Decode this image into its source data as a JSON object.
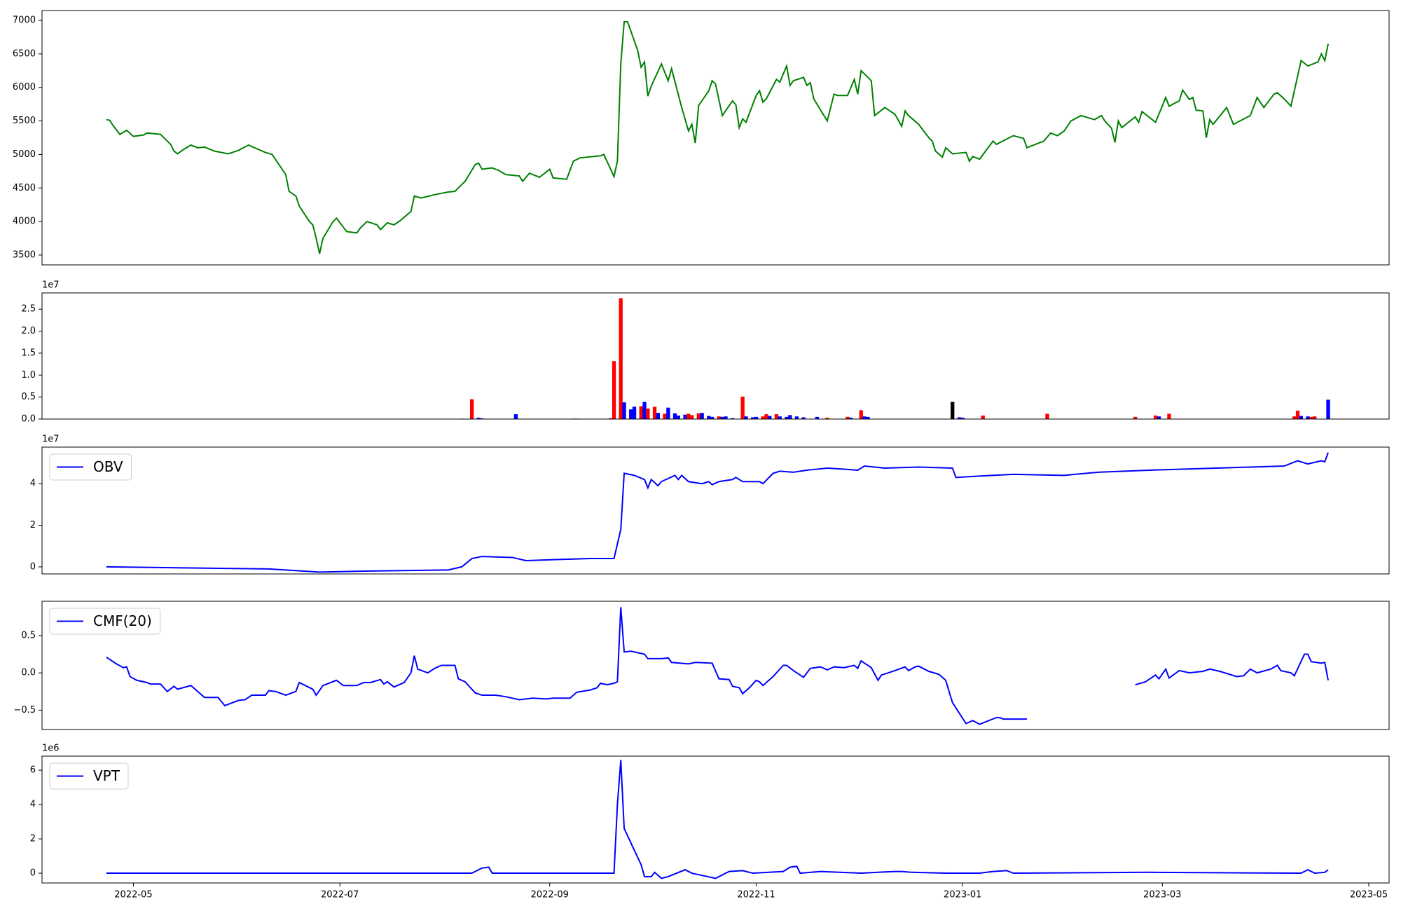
{
  "chart_data": [
    {
      "type": "line",
      "color": "#008000",
      "x": [
        -8,
        -7,
        -6,
        -4,
        -2,
        0,
        3,
        4,
        8,
        11,
        12,
        13,
        15,
        17,
        19,
        21,
        24,
        28,
        31,
        34,
        39,
        41,
        45,
        46,
        48,
        49,
        52,
        53,
        54,
        55,
        56,
        59,
        60,
        63,
        66,
        67,
        69,
        72,
        73,
        75,
        77,
        79,
        82,
        83,
        85,
        89,
        93,
        95,
        97,
        98,
        101,
        102,
        103,
        106,
        108,
        110,
        114,
        115,
        117,
        120,
        123,
        124,
        128,
        130,
        132,
        138,
        139,
        142,
        143,
        144,
        145,
        146,
        149,
        150,
        151,
        152,
        153,
        156,
        158,
        159,
        162,
        164,
        165,
        166,
        167,
        170,
        171,
        172,
        174,
        177,
        178,
        179,
        180,
        181,
        184,
        185,
        186,
        187,
        190,
        191,
        193,
        194,
        195,
        198,
        199,
        200,
        201,
        205,
        207,
        208,
        211,
        213,
        214,
        215,
        218,
        219,
        222,
        225,
        227,
        228,
        229,
        232,
        235,
        236,
        237,
        239,
        240,
        242,
        246,
        247,
        248,
        250,
        254,
        255,
        258,
        260,
        263,
        264,
        267,
        269,
        271,
        273,
        275,
        277,
        280,
        284,
        286,
        287,
        289,
        290,
        291,
        292,
        296,
        297,
        298,
        302,
        305,
        306,
        309,
        310,
        312,
        313,
        314,
        316,
        317,
        318,
        319,
        323,
        325,
        330,
        332,
        334,
        337,
        338,
        340,
        342,
        345,
        347,
        350,
        351,
        352,
        353
      ],
      "values": [
        5520,
        5510,
        5430,
        5300,
        5360,
        5270,
        5290,
        5320,
        5300,
        5150,
        5050,
        5010,
        5080,
        5140,
        5100,
        5110,
        5050,
        5010,
        5060,
        5140,
        5030,
        5000,
        4700,
        4450,
        4380,
        4230,
        4000,
        3950,
        3750,
        3520,
        3750,
        4000,
        4050,
        3850,
        3830,
        3900,
        4000,
        3950,
        3880,
        3980,
        3950,
        4020,
        4150,
        4380,
        4350,
        4400,
        4440,
        4450,
        4550,
        4600,
        4850,
        4870,
        4780,
        4800,
        4760,
        4700,
        4680,
        4600,
        4720,
        4660,
        4780,
        4650,
        4630,
        4900,
        4950,
        4980,
        5000,
        4670,
        4900,
        6350,
        6980,
        6980,
        6550,
        6300,
        6380,
        5870,
        6020,
        6350,
        6100,
        6280,
        5700,
        5350,
        5450,
        5170,
        5730,
        5950,
        6100,
        6050,
        5580,
        5800,
        5740,
        5400,
        5530,
        5480,
        5880,
        5950,
        5780,
        5830,
        6120,
        6080,
        6320,
        6030,
        6100,
        6150,
        6030,
        6070,
        5830,
        5500,
        5900,
        5880,
        5880,
        6120,
        5900,
        6250,
        6100,
        5580,
        5700,
        5600,
        5420,
        5650,
        5580,
        5450,
        5250,
        5200,
        5050,
        4960,
        5100,
        5010,
        5030,
        4900,
        4970,
        4930,
        5200,
        5150,
        5230,
        5280,
        5240,
        5100,
        5160,
        5200,
        5320,
        5280,
        5350,
        5500,
        5580,
        5520,
        5580,
        5500,
        5390,
        5180,
        5500,
        5400,
        5560,
        5480,
        5640,
        5480,
        5850,
        5720,
        5800,
        5960,
        5820,
        5850,
        5660,
        5650,
        5250,
        5520,
        5450,
        5700,
        5450,
        5580,
        5850,
        5700,
        5900,
        5920,
        5830,
        5720,
        6400,
        6320,
        6380,
        6500,
        6400,
        6650
      ],
      "xlim": [
        -27,
        371
      ],
      "ylim": [
        3353,
        7147
      ],
      "yticks": [
        3500,
        4000,
        4500,
        5000,
        5500,
        6000,
        6500,
        7000
      ]
    },
    {
      "type": "bar",
      "offset_label": "1e7",
      "x": [
        -1,
        97,
        100,
        102,
        103,
        113,
        130,
        131,
        141,
        142,
        144,
        145,
        147,
        148,
        150,
        151,
        152,
        154,
        155,
        157,
        158,
        160,
        161,
        163,
        164,
        165,
        167,
        168,
        170,
        171,
        173,
        174,
        175,
        177,
        180,
        181,
        183,
        184,
        186,
        187,
        188,
        190,
        191,
        193,
        194,
        196,
        198,
        202,
        205,
        211,
        212,
        215,
        216,
        217,
        242,
        244,
        245,
        251,
        270,
        296,
        302,
        303,
        306,
        343,
        344,
        345,
        347,
        348,
        349,
        353
      ],
      "values": [
        50000,
        100000,
        4500000,
        300000,
        150000,
        1100000,
        100000,
        100000,
        200000,
        13200000,
        27500000,
        3800000,
        2200000,
        2800000,
        2900000,
        3900000,
        2400000,
        2800000,
        1400000,
        1200000,
        2600000,
        1300000,
        800000,
        1000000,
        1200000,
        900000,
        1300000,
        1400000,
        700000,
        500000,
        600000,
        500000,
        600000,
        200000,
        5100000,
        600000,
        400000,
        500000,
        600000,
        1100000,
        700000,
        1100000,
        600000,
        500000,
        900000,
        600000,
        400000,
        500000,
        300000,
        500000,
        300000,
        2000000,
        600000,
        500000,
        3900000,
        400000,
        300000,
        800000,
        1200000,
        500000,
        800000,
        600000,
        1200000,
        600000,
        1900000,
        700000,
        600000,
        500000,
        600000,
        4400000
      ],
      "colors": [
        "#ff0000",
        "#ff0000",
        "#ff0000",
        "#0000ff",
        "#0000ff",
        "#0000ff",
        "#ff0000",
        "#ff0000",
        "#ff0000",
        "#ff0000",
        "#ff0000",
        "#0000ff",
        "#0000ff",
        "#0000ff",
        "#ff0000",
        "#0000ff",
        "#ff0000",
        "#ff0000",
        "#0000ff",
        "#ff0000",
        "#0000ff",
        "#0000ff",
        "#0000ff",
        "#0000ff",
        "#ff0000",
        "#ff0000",
        "#ff0000",
        "#0000ff",
        "#0000ff",
        "#0000ff",
        "#ff0000",
        "#0000ff",
        "#0000ff",
        "#0000ff",
        "#ff0000",
        "#0000ff",
        "#0000ff",
        "#0000ff",
        "#ff0000",
        "#ff0000",
        "#0000ff",
        "#ff0000",
        "#0000ff",
        "#0000ff",
        "#0000ff",
        "#0000ff",
        "#0000ff",
        "#0000ff",
        "#ff0000",
        "#ff0000",
        "#0000ff",
        "#ff0000",
        "#0000ff",
        "#0000ff",
        "#000000",
        "#0000ff",
        "#0000ff",
        "#ff0000",
        "#ff0000",
        "#ff0000",
        "#ff0000",
        "#0000ff",
        "#ff0000",
        "#ff0000",
        "#ff0000",
        "#0000ff",
        "#0000ff",
        "#ff0000",
        "#ff0000",
        "#0000ff"
      ],
      "xlim": [
        -27,
        371
      ],
      "ylim": [
        0,
        28700000
      ],
      "yticks": [
        {
          "value": 0,
          "label": "0.0"
        },
        {
          "value": 5000000,
          "label": "0.5"
        },
        {
          "value": 10000000,
          "label": "1.0"
        },
        {
          "value": 15000000,
          "label": "1.5"
        },
        {
          "value": 20000000,
          "label": "2.0"
        },
        {
          "value": 25000000,
          "label": "2.5"
        }
      ]
    },
    {
      "type": "line",
      "offset_label": "1e7",
      "legend": "upper left",
      "x": [
        -8,
        40,
        55,
        70,
        93,
        97,
        100,
        103,
        112,
        116,
        125,
        135,
        142,
        144,
        145,
        148,
        151,
        152,
        153,
        155,
        156,
        160,
        161,
        162,
        164,
        168,
        170,
        171,
        173,
        177,
        178,
        180,
        185,
        186,
        189,
        191,
        195,
        199,
        205,
        210,
        214,
        216,
        222,
        232,
        242,
        243,
        248,
        260,
        275,
        285,
        300,
        320,
        340,
        344,
        347,
        351,
        352,
        353
      ],
      "series": [
        {
          "name": "OBV",
          "color": "#0000ff",
          "values": [
            0,
            -1000000,
            -2500000,
            -2000000,
            -1500000,
            0,
            4000000,
            5000000,
            4500000,
            3000000,
            3500000,
            4000000,
            4000000,
            18000000,
            45000000,
            44000000,
            42000000,
            38000000,
            42000000,
            39000000,
            41000000,
            44000000,
            42000000,
            44000000,
            41000000,
            40000000,
            41000000,
            39500000,
            41000000,
            42000000,
            43000000,
            41000000,
            41000000,
            40000000,
            45000000,
            46000000,
            45500000,
            46500000,
            47500000,
            47000000,
            46500000,
            48500000,
            47500000,
            48000000,
            47500000,
            43000000,
            43500000,
            44500000,
            44000000,
            45500000,
            46500000,
            47500000,
            48500000,
            51000000,
            49500000,
            51000000,
            50500000,
            55000000
          ]
        }
      ],
      "xlim": [
        -27,
        371
      ],
      "ylim": [
        -3400000,
        57600000
      ],
      "yticks": [
        0,
        {
          "value": 20000000,
          "label": "2"
        },
        {
          "value": 40000000,
          "label": "4"
        }
      ]
    },
    {
      "type": "line",
      "legend": "upper left",
      "x": [
        -8,
        -5,
        -3,
        -2,
        -1,
        1,
        4,
        5,
        8,
        10,
        12,
        13,
        17,
        21,
        25,
        27,
        31,
        33,
        35,
        39,
        40,
        42,
        45,
        48,
        49,
        53,
        54,
        56,
        60,
        62,
        66,
        68,
        70,
        73,
        74,
        75,
        77,
        80,
        82,
        83,
        84,
        87,
        89,
        91,
        95,
        96,
        98,
        101,
        103,
        107,
        110,
        114,
        118,
        122,
        124,
        129,
        131,
        135,
        137,
        138,
        140,
        142,
        143,
        144,
        145,
        147,
        149,
        151,
        152,
        156,
        158,
        159,
        164,
        166,
        171,
        173,
        176,
        177,
        179,
        180,
        182,
        184,
        185,
        186,
        189,
        192,
        193,
        195,
        198,
        200,
        203,
        205,
        207,
        210,
        213,
        214,
        215,
        218,
        220,
        221,
        225,
        228,
        229,
        231,
        232,
        235,
        238,
        240,
        242,
        246,
        248,
        250,
        255,
        256,
        257,
        260,
        264,
        null,
        296,
        299,
        302,
        303,
        305,
        306,
        309,
        312,
        316,
        318,
        321,
        326,
        328,
        330,
        332,
        336,
        338,
        339,
        342,
        343,
        346,
        347,
        348,
        351,
        352,
        353
      ],
      "series": [
        {
          "name": "CMF(20)",
          "color": "#0000ff",
          "values": [
            0.21,
            0.12,
            0.07,
            0.08,
            -0.05,
            -0.1,
            -0.13,
            -0.15,
            -0.15,
            -0.25,
            -0.18,
            -0.22,
            -0.17,
            -0.33,
            -0.33,
            -0.44,
            -0.37,
            -0.36,
            -0.3,
            -0.3,
            -0.24,
            -0.25,
            -0.3,
            -0.25,
            -0.13,
            -0.22,
            -0.3,
            -0.17,
            -0.1,
            -0.17,
            -0.17,
            -0.13,
            -0.13,
            -0.09,
            -0.15,
            -0.12,
            -0.19,
            -0.13,
            0.0,
            0.23,
            0.05,
            0.0,
            0.06,
            0.1,
            0.1,
            -0.08,
            -0.12,
            -0.27,
            -0.3,
            -0.3,
            -0.32,
            -0.36,
            -0.34,
            -0.35,
            -0.34,
            -0.34,
            -0.26,
            -0.23,
            -0.2,
            -0.14,
            -0.16,
            -0.14,
            -0.12,
            0.88,
            0.28,
            0.29,
            0.27,
            0.25,
            0.19,
            0.19,
            0.2,
            0.14,
            0.12,
            0.14,
            0.13,
            -0.08,
            -0.09,
            -0.18,
            -0.2,
            -0.28,
            -0.2,
            -0.1,
            -0.12,
            -0.17,
            -0.05,
            0.1,
            0.1,
            0.03,
            -0.06,
            0.06,
            0.08,
            0.04,
            0.08,
            0.07,
            0.1,
            0.06,
            0.16,
            0.07,
            -0.1,
            -0.03,
            0.03,
            0.08,
            0.03,
            0.08,
            0.09,
            0.02,
            -0.02,
            -0.1,
            -0.4,
            -0.68,
            -0.64,
            -0.69,
            -0.6,
            -0.6,
            -0.62,
            -0.62,
            -0.62,
            null,
            -0.16,
            -0.12,
            -0.03,
            -0.08,
            0.05,
            -0.07,
            0.03,
            0.0,
            0.02,
            0.05,
            0.02,
            -0.05,
            -0.04,
            0.05,
            0.0,
            0.05,
            0.1,
            0.03,
            0.0,
            -0.04,
            0.25,
            0.25,
            0.15,
            0.13,
            0.14,
            -0.1
          ]
        }
      ],
      "xlim": [
        -27,
        371
      ],
      "ylim": [
        -0.76,
        0.96
      ],
      "yticks": [
        {
          "value": -0.5,
          "label": "−0.5"
        },
        {
          "value": 0,
          "label": "0.0"
        },
        0.5
      ]
    },
    {
      "type": "line",
      "offset_label": "1e6",
      "legend": "upper left",
      "x": [
        -8,
        100,
        103,
        105,
        106,
        142,
        143,
        144,
        145,
        150,
        151,
        153,
        154,
        156,
        158,
        163,
        165,
        172,
        176,
        180,
        183,
        192,
        194,
        196,
        197,
        203,
        215,
        225,
        227,
        230,
        240,
        250,
        254,
        258,
        260,
        300,
        345,
        347,
        349,
        352,
        353
      ],
      "series": [
        {
          "name": "VPT",
          "color": "#0000ff",
          "values": [
            0,
            0,
            300000,
            350000,
            0,
            0,
            4000000,
            6600000,
            2600000,
            500000,
            -200000,
            -200000,
            50000,
            -300000,
            -200000,
            200000,
            0,
            -300000,
            100000,
            150000,
            0,
            100000,
            350000,
            400000,
            0,
            100000,
            0,
            100000,
            100000,
            50000,
            0,
            0,
            100000,
            150000,
            0,
            50000,
            0,
            200000,
            0,
            50000,
            200000
          ]
        }
      ],
      "xlim": [
        -27,
        371
      ],
      "ylim": [
        -570000,
        6820000
      ],
      "yticks": [
        0,
        {
          "value": 2000000,
          "label": "2"
        },
        {
          "value": 4000000,
          "label": "4"
        },
        {
          "value": 6000000,
          "label": "6"
        }
      ],
      "xticks": [
        {
          "value": 0,
          "label": "2022-05"
        },
        {
          "value": 61,
          "label": "2022-07"
        },
        {
          "value": 123,
          "label": "2022-09"
        },
        {
          "value": 184,
          "label": "2022-11"
        },
        {
          "value": 245,
          "label": "2023-01"
        },
        {
          "value": 304,
          "label": "2023-03"
        },
        {
          "value": 365,
          "label": "2023-05"
        }
      ]
    }
  ]
}
